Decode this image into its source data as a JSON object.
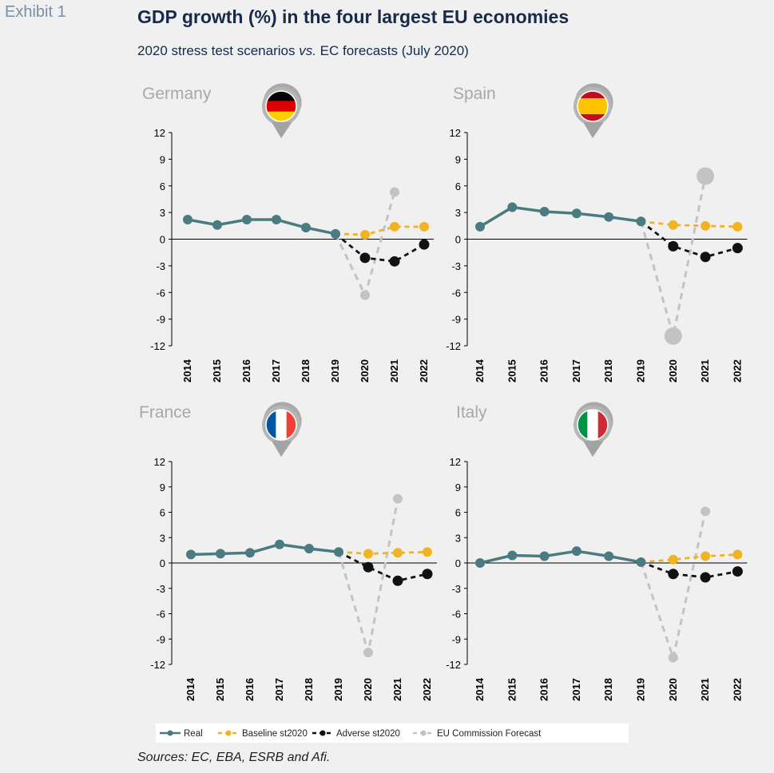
{
  "header": {
    "exhibit": "Exhibit 1",
    "title": "GDP growth (%) in the four largest EU economies",
    "subtitle_before": "2020 stress test scenarios ",
    "subtitle_vs": "vs.",
    "subtitle_after": " EC forecasts (July 2020)"
  },
  "footer": {
    "sources": "Sources: EC, EBA, ESRB and Afi."
  },
  "colors": {
    "real": "#4a7b80",
    "baseline": "#f0b323",
    "adverse": "#111111",
    "ec_forecast": "#c3c3c3",
    "country_title": "#a8a8a8",
    "axis_text": "#000000"
  },
  "icons": {
    "Germany": "germany-flag-pin-icon",
    "Spain": "spain-flag-pin-icon",
    "France": "france-flag-pin-icon",
    "Italy": "italy-flag-pin-icon"
  },
  "chart_data": [
    {
      "type": "line",
      "title": "Germany",
      "categories": [
        "2014",
        "2015",
        "2016",
        "2017",
        "2018",
        "2019",
        "2020",
        "2021",
        "2022"
      ],
      "ylim": [
        -12,
        12
      ],
      "yticks": [
        12,
        9,
        6,
        3,
        0,
        -3,
        -6,
        -9,
        -12
      ],
      "series": [
        {
          "name": "Real",
          "values": [
            2.2,
            1.6,
            2.2,
            2.2,
            1.3,
            0.6,
            null,
            null,
            null
          ]
        },
        {
          "name": "Baseline st2020",
          "values": [
            null,
            null,
            null,
            null,
            null,
            0.6,
            0.5,
            1.4,
            1.4
          ]
        },
        {
          "name": "Adverse st2020",
          "values": [
            null,
            null,
            null,
            null,
            null,
            0.6,
            -2.1,
            -2.5,
            -0.6
          ]
        },
        {
          "name": "EU Commission Forecast",
          "values": [
            null,
            null,
            null,
            null,
            null,
            0.6,
            -6.3,
            5.3,
            null
          ]
        }
      ]
    },
    {
      "type": "line",
      "title": "Spain",
      "categories": [
        "2014",
        "2015",
        "2016",
        "2017",
        "2018",
        "2019",
        "2020",
        "2021",
        "2022"
      ],
      "ylim": [
        -12,
        12
      ],
      "yticks": [
        12,
        9,
        6,
        3,
        0,
        -3,
        -6,
        -9,
        -12
      ],
      "series": [
        {
          "name": "Real",
          "values": [
            1.4,
            3.6,
            3.1,
            2.9,
            2.5,
            2.0,
            null,
            null,
            null
          ]
        },
        {
          "name": "Baseline st2020",
          "values": [
            null,
            null,
            null,
            null,
            null,
            2.0,
            1.6,
            1.5,
            1.4
          ]
        },
        {
          "name": "Adverse st2020",
          "values": [
            null,
            null,
            null,
            null,
            null,
            2.0,
            -0.8,
            -2.0,
            -1.0
          ]
        },
        {
          "name": "EU Commission Forecast",
          "values": [
            null,
            null,
            null,
            null,
            null,
            2.0,
            -10.9,
            7.1,
            null
          ]
        }
      ]
    },
    {
      "type": "line",
      "title": "France",
      "categories": [
        "2014",
        "2015",
        "2016",
        "2017",
        "2018",
        "2019",
        "2020",
        "2021",
        "2022"
      ],
      "ylim": [
        -12,
        12
      ],
      "yticks": [
        12,
        9,
        6,
        3,
        0,
        -3,
        -6,
        -9,
        -12
      ],
      "series": [
        {
          "name": "Real",
          "values": [
            1.0,
            1.1,
            1.2,
            2.2,
            1.7,
            1.3,
            null,
            null,
            null
          ]
        },
        {
          "name": "Baseline st2020",
          "values": [
            null,
            null,
            null,
            null,
            null,
            1.3,
            1.1,
            1.2,
            1.3
          ]
        },
        {
          "name": "Adverse st2020",
          "values": [
            null,
            null,
            null,
            null,
            null,
            1.3,
            -0.5,
            -2.1,
            -1.3
          ]
        },
        {
          "name": "EU Commission Forecast",
          "values": [
            null,
            null,
            null,
            null,
            null,
            1.3,
            -10.6,
            7.6,
            null
          ]
        }
      ]
    },
    {
      "type": "line",
      "title": "Italy",
      "categories": [
        "2014",
        "2015",
        "2016",
        "2017",
        "2018",
        "2019",
        "2020",
        "2021",
        "2022"
      ],
      "ylim": [
        -12,
        12
      ],
      "yticks": [
        12,
        9,
        6,
        3,
        0,
        -3,
        -6,
        -9,
        -12
      ],
      "series": [
        {
          "name": "Real",
          "values": [
            0.0,
            0.9,
            0.8,
            1.4,
            0.8,
            0.1,
            null,
            null,
            null
          ]
        },
        {
          "name": "Baseline st2020",
          "values": [
            null,
            null,
            null,
            null,
            null,
            0.1,
            0.4,
            0.8,
            1.0
          ]
        },
        {
          "name": "Adverse st2020",
          "values": [
            null,
            null,
            null,
            null,
            null,
            0.1,
            -1.3,
            -1.7,
            -1.0
          ]
        },
        {
          "name": "EU Commission Forecast",
          "values": [
            null,
            null,
            null,
            null,
            null,
            0.1,
            -11.2,
            6.1,
            null
          ]
        }
      ]
    }
  ],
  "legend": [
    "Real",
    "Baseline st2020",
    "Adverse st2020",
    "EU Commission Forecast"
  ]
}
